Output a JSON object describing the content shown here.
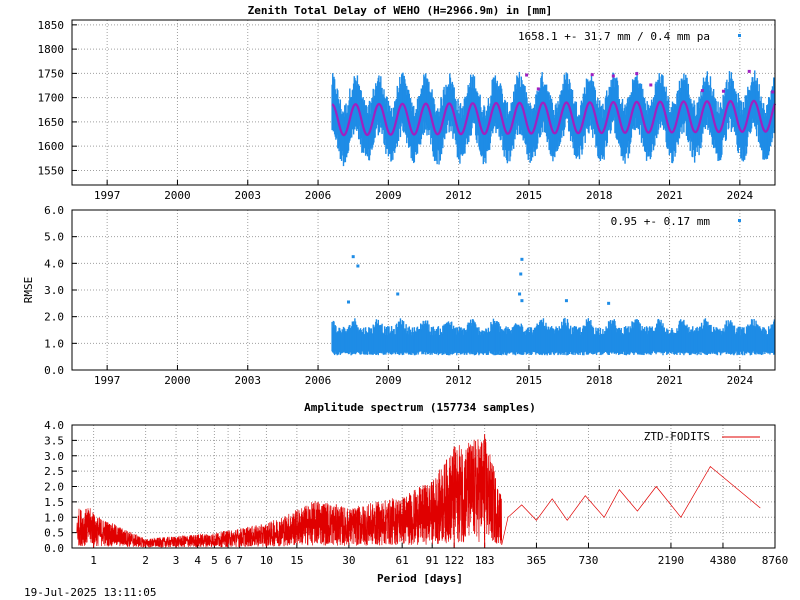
{
  "timestamp": "19-Jul-2025 13:11:05",
  "colors": {
    "ztd": "#1e8ce6",
    "fit": "#a020c0",
    "rmse": "#1e8ce6",
    "spectrum": "#e00000"
  },
  "chart_data": [
    {
      "type": "scatter",
      "title": "Zenith Total Delay of WEHO (H=2966.9m) in [mm]",
      "ylabel": "",
      "annotation": "1658.1 +-  31.7 mm /  0.4 mm pa",
      "xlim": [
        1995.5,
        2025.5
      ],
      "ylim": [
        1520,
        1860
      ],
      "x_ticks": [
        1997,
        2000,
        2003,
        2006,
        2009,
        2012,
        2015,
        2018,
        2021,
        2024
      ],
      "y_ticks": [
        1550,
        1600,
        1650,
        1700,
        1750,
        1800,
        1850
      ],
      "data_start": 2006.6,
      "data_end": 2025.5,
      "series": [
        {
          "values": {
            "mean": 1658.1,
            "annual_amplitude": 31.7,
            "trend_mm_per_year": 0.4,
            "scatter_range": [
              1560,
              1730
            ]
          }
        },
        {
          "values": {
            "mean": 1658.1,
            "annual_amplitude": 31.7,
            "trend_mm_per_year": 0.4
          }
        }
      ]
    },
    {
      "type": "scatter",
      "title": "",
      "ylabel": "RMSE",
      "annotation": "0.95 +-  0.17 mm",
      "xlim": [
        1995.5,
        2025.5
      ],
      "ylim": [
        0.0,
        6.0
      ],
      "x_ticks": [
        1997,
        2000,
        2003,
        2006,
        2009,
        2012,
        2015,
        2018,
        2021,
        2024
      ],
      "y_ticks": [
        "0.0",
        "1.0",
        "2.0",
        "3.0",
        "4.0",
        "5.0",
        "6.0"
      ],
      "data_start": 2006.6,
      "data_end": 2025.5,
      "mean": 0.95,
      "std": 0.17,
      "outliers": [
        {
          "x": 2007.5,
          "y": 4.25
        },
        {
          "x": 2007.7,
          "y": 3.9
        },
        {
          "x": 2007.3,
          "y": 2.55
        },
        {
          "x": 2009.4,
          "y": 2.85
        },
        {
          "x": 2014.7,
          "y": 4.15
        },
        {
          "x": 2014.65,
          "y": 3.6
        },
        {
          "x": 2014.6,
          "y": 2.85
        },
        {
          "x": 2014.7,
          "y": 2.6
        },
        {
          "x": 2016.6,
          "y": 2.6
        },
        {
          "x": 2018.4,
          "y": 2.5
        }
      ]
    },
    {
      "type": "line",
      "title": "Amplitude spectrum (157734 samples)",
      "xlabel": "Period [days]",
      "ylabel": "",
      "x_scale": "log",
      "xlim": [
        0.75,
        8760
      ],
      "ylim": [
        0.0,
        4.0
      ],
      "x_ticks": [
        1,
        2,
        3,
        4,
        5,
        6,
        7,
        10,
        15,
        30,
        61,
        91,
        122,
        183,
        365,
        730,
        2190,
        4380,
        8760
      ],
      "y_ticks": [
        "0.0",
        "0.5",
        "1.0",
        "1.5",
        "2.0",
        "2.5",
        "3.0",
        "3.5",
        "4.0"
      ],
      "series": [
        {
          "name": "ZTD-FODITS",
          "values": [
            {
              "x": 1,
              "y": 1.1
            },
            {
              "x": 2,
              "y": 0.3
            },
            {
              "x": 5,
              "y": 0.5
            },
            {
              "x": 10,
              "y": 0.8
            },
            {
              "x": 20,
              "y": 1.6
            },
            {
              "x": 30,
              "y": 1.3
            },
            {
              "x": 61,
              "y": 1.7
            },
            {
              "x": 91,
              "y": 2.2
            },
            {
              "x": 122,
              "y": 3.3
            },
            {
              "x": 183,
              "y": 3.7
            },
            {
              "x": 250,
              "y": 1.0
            },
            {
              "x": 300,
              "y": 1.4
            },
            {
              "x": 365,
              "y": 0.9
            },
            {
              "x": 450,
              "y": 1.6
            },
            {
              "x": 550,
              "y": 0.9
            },
            {
              "x": 700,
              "y": 1.7
            },
            {
              "x": 900,
              "y": 1.0
            },
            {
              "x": 1100,
              "y": 1.9
            },
            {
              "x": 1400,
              "y": 1.2
            },
            {
              "x": 1800,
              "y": 2.0
            },
            {
              "x": 2500,
              "y": 1.0
            },
            {
              "x": 3700,
              "y": 2.65
            },
            {
              "x": 7200,
              "y": 1.3
            }
          ]
        }
      ]
    }
  ]
}
